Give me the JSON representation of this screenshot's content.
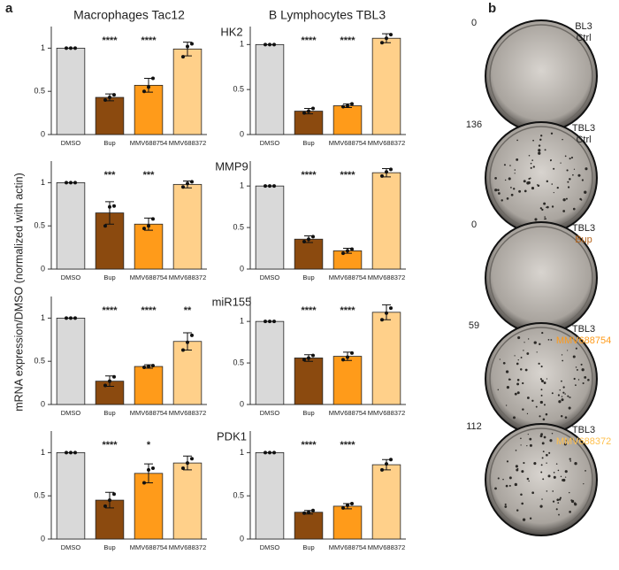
{
  "panel_labels": [
    "a",
    "b"
  ],
  "column_titles": [
    "Macrophages Tac12",
    "B Lymphocytes TBL3"
  ],
  "row_titles": [
    "HK2",
    "MMP9",
    "miR155",
    "PDK1"
  ],
  "y_axis_label": "mRNA expression/DMSO (normalized with actin)",
  "chart_data": [
    {
      "type": "bar",
      "categories": [
        "DMSO",
        "Bup",
        "MMV688754",
        "MMV688372"
      ],
      "colors": [
        "#d9d9d9",
        "#8b4a0f",
        "#ff9b1a",
        "#ffd08a"
      ],
      "values": [
        1,
        0.43,
        0.57,
        0.99
      ],
      "errors": [
        0,
        0.04,
        0.08,
        0.08
      ],
      "points": [
        [
          1,
          1,
          1
        ],
        [
          0.4,
          0.43,
          0.46
        ],
        [
          0.5,
          0.55,
          0.65
        ],
        [
          0.9,
          1.02,
          1.05
        ]
      ],
      "annotations": [
        null,
        "****",
        "****",
        null
      ],
      "ylim": [
        0,
        1.25
      ],
      "yticks": [
        0,
        0.5,
        1
      ]
    },
    {
      "type": "bar",
      "categories": [
        "DMSO",
        "Bup",
        "MMV688754",
        "MMV688372"
      ],
      "colors": [
        "#d9d9d9",
        "#8b4a0f",
        "#ff9b1a",
        "#ffd08a"
      ],
      "values": [
        1,
        0.26,
        0.32,
        1.07
      ],
      "errors": [
        0,
        0.03,
        0.02,
        0.05
      ],
      "points": [
        [
          1,
          1,
          1
        ],
        [
          0.24,
          0.26,
          0.29
        ],
        [
          0.31,
          0.32,
          0.34
        ],
        [
          1.02,
          1.07,
          1.11
        ]
      ],
      "annotations": [
        null,
        "****",
        "****",
        null
      ],
      "ylim": [
        0,
        1.2
      ],
      "yticks": [
        0,
        0.5,
        1
      ]
    },
    {
      "type": "bar",
      "categories": [
        "DMSO",
        "Bup",
        "MMV688754",
        "MMV688372"
      ],
      "colors": [
        "#d9d9d9",
        "#8b4a0f",
        "#ff9b1a",
        "#ffd08a"
      ],
      "values": [
        1,
        0.65,
        0.52,
        0.98
      ],
      "errors": [
        0,
        0.13,
        0.07,
        0.04
      ],
      "points": [
        [
          1,
          1,
          1
        ],
        [
          0.5,
          0.72,
          0.73
        ],
        [
          0.47,
          0.5,
          0.58
        ],
        [
          0.95,
          0.99,
          1.01
        ]
      ],
      "annotations": [
        null,
        "***",
        "***",
        null
      ],
      "ylim": [
        0,
        1.25
      ],
      "yticks": [
        0,
        0.5,
        1
      ]
    },
    {
      "type": "bar",
      "categories": [
        "DMSO",
        "Bup",
        "MMV688754",
        "MMV688372"
      ],
      "colors": [
        "#d9d9d9",
        "#8b4a0f",
        "#ff9b1a",
        "#ffd08a"
      ],
      "values": [
        1,
        0.36,
        0.22,
        1.16
      ],
      "errors": [
        0,
        0.04,
        0.03,
        0.05
      ],
      "points": [
        [
          1,
          1,
          1
        ],
        [
          0.33,
          0.36,
          0.39
        ],
        [
          0.19,
          0.22,
          0.24
        ],
        [
          1.12,
          1.17,
          1.2
        ]
      ],
      "annotations": [
        null,
        "****",
        "****",
        null
      ],
      "ylim": [
        0,
        1.3
      ],
      "yticks": [
        0,
        0.5,
        1
      ]
    },
    {
      "type": "bar",
      "categories": [
        "DMSO",
        "Bup",
        "MMV688754",
        "MMV688372"
      ],
      "colors": [
        "#d9d9d9",
        "#8b4a0f",
        "#ff9b1a",
        "#ffd08a"
      ],
      "values": [
        1,
        0.27,
        0.44,
        0.73
      ],
      "errors": [
        0,
        0.06,
        0.02,
        0.1
      ],
      "points": [
        [
          1,
          1,
          1
        ],
        [
          0.22,
          0.27,
          0.32
        ],
        [
          0.43,
          0.44,
          0.45
        ],
        [
          0.63,
          0.72,
          0.8
        ]
      ],
      "annotations": [
        null,
        "****",
        "****",
        "**"
      ],
      "ylim": [
        0,
        1.25
      ],
      "yticks": [
        0,
        0.5,
        1
      ]
    },
    {
      "type": "bar",
      "categories": [
        "DMSO",
        "Bup",
        "MMV688754",
        "MMV688372"
      ],
      "colors": [
        "#d9d9d9",
        "#8b4a0f",
        "#ff9b1a",
        "#ffd08a"
      ],
      "values": [
        1,
        0.56,
        0.58,
        1.11
      ],
      "errors": [
        0,
        0.04,
        0.05,
        0.09
      ],
      "points": [
        [
          1,
          1,
          1
        ],
        [
          0.54,
          0.56,
          0.59
        ],
        [
          0.54,
          0.57,
          0.62
        ],
        [
          1.02,
          1.1,
          1.16
        ]
      ],
      "annotations": [
        null,
        "****",
        "****",
        null
      ],
      "ylim": [
        0,
        1.3
      ],
      "yticks": [
        0,
        0.5,
        1
      ]
    },
    {
      "type": "bar",
      "categories": [
        "DMSO",
        "Bup",
        "MMV688754",
        "MMV688372"
      ],
      "colors": [
        "#d9d9d9",
        "#8b4a0f",
        "#ff9b1a",
        "#ffd08a"
      ],
      "values": [
        1,
        0.45,
        0.76,
        0.88
      ],
      "errors": [
        0,
        0.09,
        0.11,
        0.08
      ],
      "points": [
        [
          1,
          1,
          1
        ],
        [
          0.38,
          0.45,
          0.52
        ],
        [
          0.65,
          0.8,
          0.82
        ],
        [
          0.82,
          0.88,
          0.93
        ]
      ],
      "annotations": [
        null,
        "****",
        "*",
        null
      ],
      "ylim": [
        0,
        1.25
      ],
      "yticks": [
        0,
        0.5,
        1
      ]
    },
    {
      "type": "bar",
      "categories": [
        "DMSO",
        "Bup",
        "MMV688754",
        "MMV688372"
      ],
      "colors": [
        "#d9d9d9",
        "#8b4a0f",
        "#ff9b1a",
        "#ffd08a"
      ],
      "values": [
        1,
        0.31,
        0.38,
        0.86
      ],
      "errors": [
        0,
        0.02,
        0.03,
        0.06
      ],
      "points": [
        [
          1,
          1,
          1
        ],
        [
          0.3,
          0.31,
          0.33
        ],
        [
          0.36,
          0.39,
          0.41
        ],
        [
          0.8,
          0.87,
          0.92
        ]
      ],
      "annotations": [
        null,
        "****",
        "****",
        null
      ],
      "ylim": [
        0,
        1.25
      ],
      "yticks": [
        0,
        0.5,
        1
      ]
    }
  ],
  "plates": [
    {
      "count": 0,
      "lines": [
        "BL3",
        "Ctrl"
      ],
      "line_colors": [
        "#222",
        "#222"
      ],
      "colonies": false
    },
    {
      "count": 136,
      "lines": [
        "TBL3",
        "Ctrl"
      ],
      "line_colors": [
        "#222",
        "#222"
      ],
      "colonies": true
    },
    {
      "count": 0,
      "lines": [
        "TBL3",
        "Bup"
      ],
      "line_colors": [
        "#222",
        "#b5651d"
      ],
      "colonies": false
    },
    {
      "count": 59,
      "lines": [
        "TBL3",
        "MMV688754"
      ],
      "line_colors": [
        "#222",
        "#ff9b1a"
      ],
      "colonies": true
    },
    {
      "count": 112,
      "lines": [
        "TBL3",
        "MMV688372"
      ],
      "line_colors": [
        "#222",
        "#ffc04d"
      ],
      "colonies": true
    }
  ]
}
